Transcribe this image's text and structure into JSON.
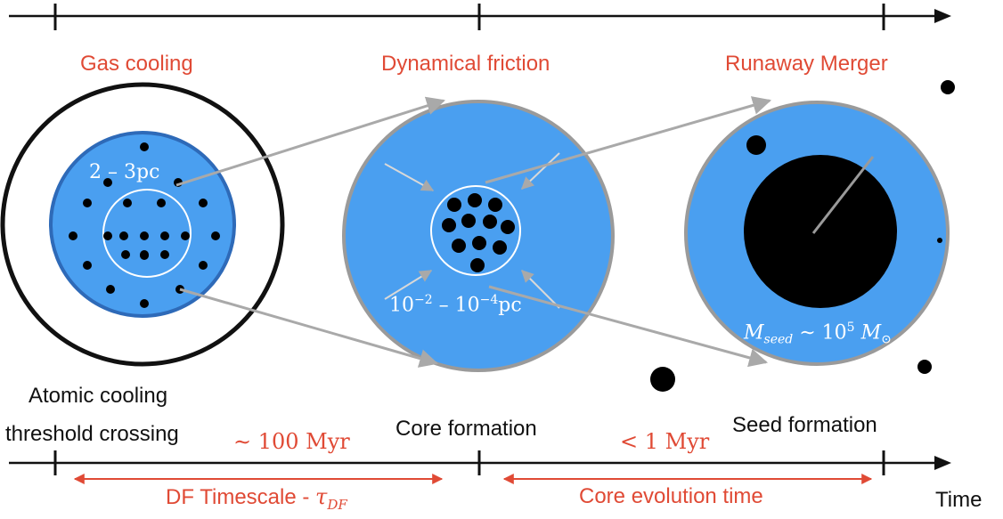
{
  "stages": [
    {
      "label": "Gas cooling",
      "caption_lines": [
        "Atomic cooling",
        "threshold crossing"
      ]
    },
    {
      "label": "Dynamical friction",
      "caption_lines": [
        "Core formation"
      ]
    },
    {
      "label": "Runaway Merger",
      "caption_lines": [
        "Seed formation"
      ]
    }
  ],
  "annotations": {
    "radius_outer": "2 – 3pc",
    "radius_core_base": "10",
    "radius_core_exp1": "−2",
    "radius_core_mid": " – 10",
    "radius_core_exp2": "−4",
    "radius_core_unit": "pc",
    "seed_mass_M": "M",
    "seed_mass_sub": "seed",
    "seed_mass_mid": " ∼ 10",
    "seed_mass_exp": "5",
    "seed_mass_M2": " M",
    "seed_mass_sun": "⊙"
  },
  "timescales": {
    "first_value": "∼ 100 Myr",
    "second_value": "< 1 Myr",
    "first_name": "DF Timescale - ",
    "first_symbol": "τ",
    "first_symbol_sub": "DF",
    "second_name": "Core evolution time"
  },
  "axis_label": "Time",
  "colors": {
    "accent": "#e04a35",
    "disk_blue": "#4a9ff0",
    "disk_dark_blue": "#2e6ab8",
    "connector_gray": "#a9a9a9",
    "ink": "#111111"
  }
}
